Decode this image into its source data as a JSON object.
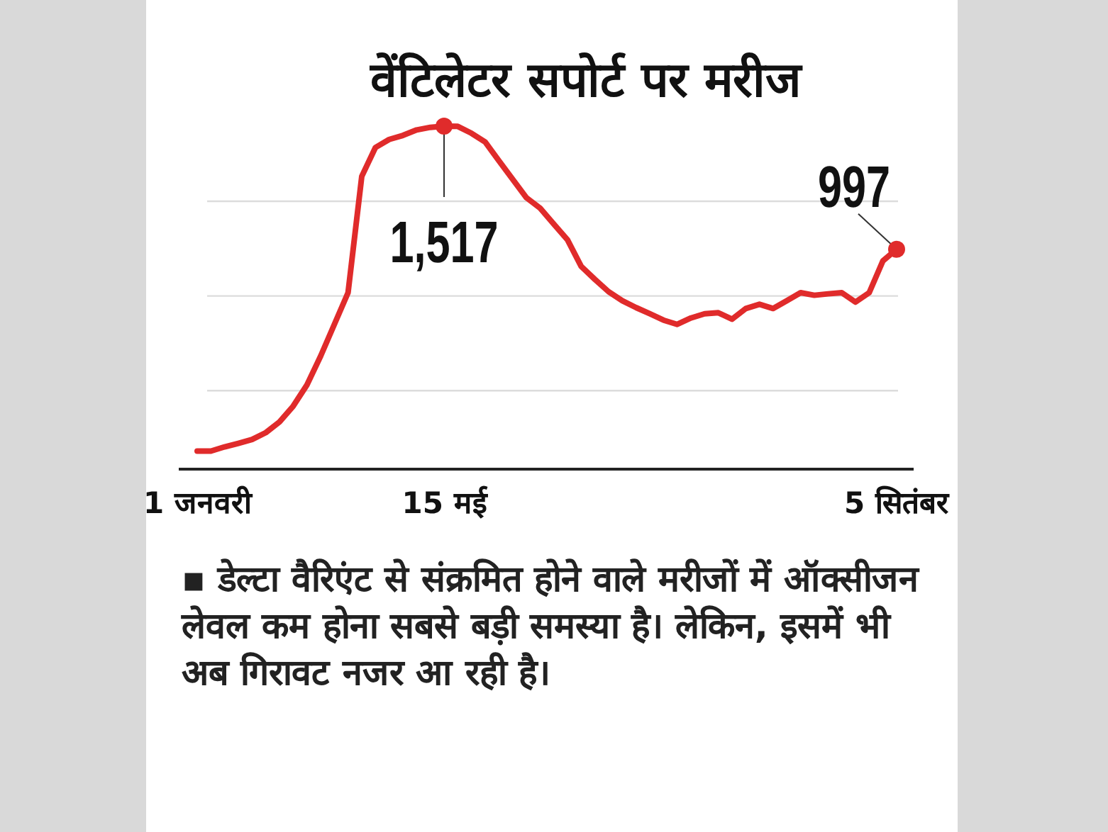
{
  "chart_data": {
    "type": "line",
    "title": "वेंटिलेटर सपोर्ट पर मरीज",
    "categories": [
      "1 जनवरी",
      null,
      null,
      null,
      null,
      null,
      null,
      null,
      null,
      null,
      null,
      null,
      null,
      null,
      null,
      null,
      null,
      null,
      "15 मई",
      null,
      null,
      null,
      null,
      null,
      null,
      null,
      null,
      null,
      null,
      null,
      null,
      null,
      null,
      null,
      null,
      null,
      null,
      null,
      null,
      null,
      null,
      null,
      null,
      null,
      null,
      null,
      null,
      null,
      null,
      null,
      null,
      "5 सितंबर"
    ],
    "series": [
      {
        "color": "#e02b2b",
        "values": [
          145,
          145,
          163,
          178,
          194,
          223,
          268,
          335,
          424,
          546,
          680,
          814,
          1305,
          1427,
          1461,
          1478,
          1501,
          1512,
          1517,
          1516,
          1487,
          1450,
          1371,
          1293,
          1215,
          1171,
          1104,
          1037,
          925,
          870,
          818,
          780,
          751,
          725,
          698,
          680,
          707,
          725,
          729,
          702,
          747,
          765,
          747,
          780,
          814,
          803,
          809,
          814,
          774,
          814,
          948,
          997
        ],
        "value_labels": [
          null,
          null,
          null,
          null,
          null,
          null,
          null,
          null,
          null,
          null,
          null,
          null,
          null,
          null,
          null,
          null,
          null,
          null,
          "1,517",
          null,
          null,
          null,
          null,
          null,
          null,
          null,
          null,
          null,
          null,
          null,
          null,
          null,
          null,
          null,
          null,
          null,
          null,
          null,
          null,
          null,
          null,
          null,
          null,
          null,
          null,
          null,
          null,
          null,
          null,
          null,
          null,
          "997"
        ]
      }
    ],
    "yticks": [
      {
        "value": 400,
        "label": null
      },
      {
        "value": 800,
        "label": null
      },
      {
        "value": 1200,
        "label": null
      }
    ],
    "grid": "y",
    "tick_labels": "x",
    "annotations": [
      "▪ डेल्टा वैरिएंट से संक्रमित होने वाले मरीजों में ऑक्सीजन लेवल कम होना सबसे बड़ी समस्या है। लेकिन, इसमें भी अब गिरावट नजर आ रही है।"
    ]
  }
}
